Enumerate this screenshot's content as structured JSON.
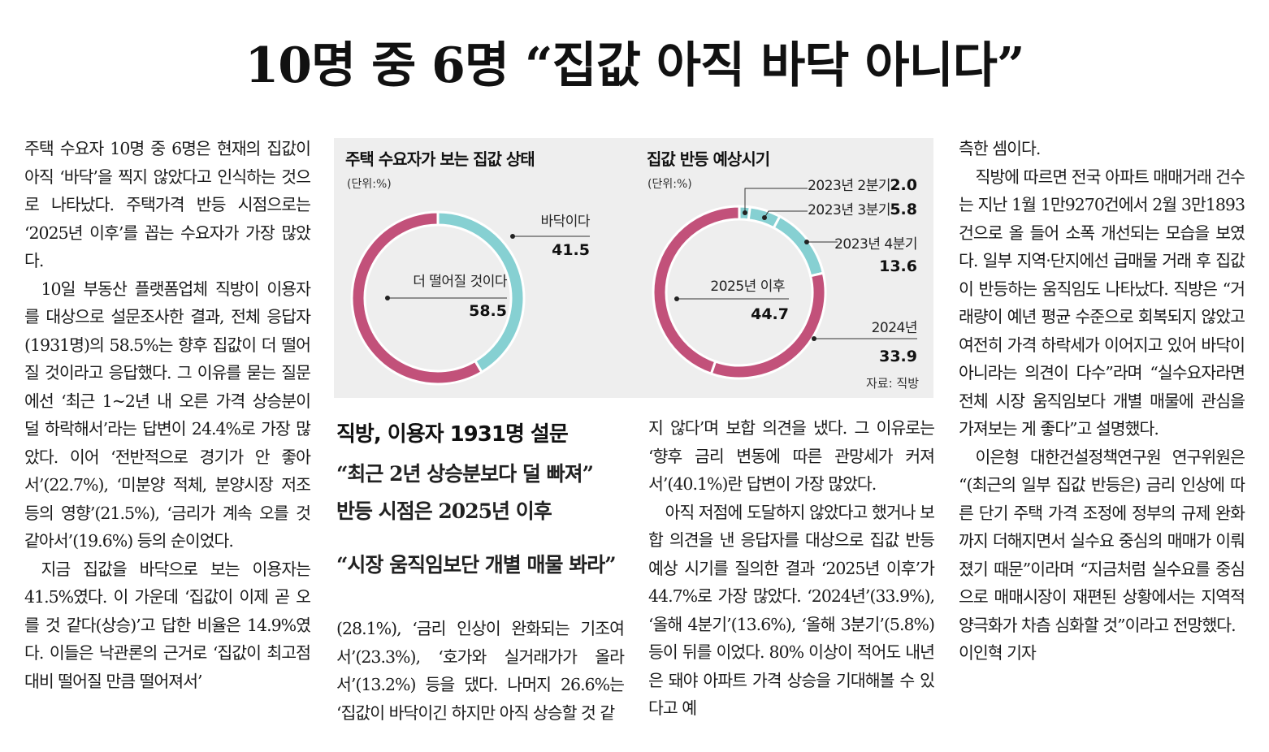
{
  "headline": "10명 중 6명 “집값 아직 바닥 아니다”",
  "column1": [
    {
      "text": "주택 수요자 10명 중 6명은 현재의 집값이 아직 ‘바닥’을 찍지 않았다고 인식하는 것으로 나타났다. 주택가격 반등 시점으로는 ‘2025년 이후’를 꼽는 수요자가 가장 많았다.",
      "indent": false
    },
    {
      "text": "10일 부동산 플랫폼업체 직방이 이용자를 대상으로 설문조사한 결과, 전체 응답자(1931명)의 58.5%는 향후 집값이 더 떨어질 것이라고 응답했다. 그 이유를 묻는 질문에선 ‘최근 1~2년 내 오른 가격 상승분이 덜 하락해서’라는 답변이 24.4%로 가장 많았다. 이어 ‘전반적으로 경기가 안 좋아서’(22.7%), ‘미분양 적체, 분양시장 저조 등의 영향’(21.5%), ‘금리가 계속 오를 것 같아서’(19.6%) 등의 순이었다.",
      "indent": true
    },
    {
      "text": "지금 집값을 바닥으로 보는 이용자는 41.5%였다. 이 가운데 ‘집값이 이제 곧 오를 것 같다(상승)’고 답한 비율은 14.9%였다. 이들은 낙관론의 근거로 ‘집값이 최고점 대비 떨어질 만큼 떨어져서’",
      "indent": true
    }
  ],
  "column2": [
    {
      "text": "(28.1%), ‘금리 인상이 완화되는 기조여서’(23.3%), ‘호가와 실거래가가 올라서’(13.2%) 등을 댔다. 나머지 26.6%는 ‘집값이 바닥이긴 하지만 아직 상승할 것 같",
      "indent": false
    }
  ],
  "column3": [
    {
      "text": "지 않다’며 보합 의견을 냈다. 그 이유로는 ‘향후 금리 변동에 따른 관망세가 커져서’(40.1%)란 답변이 가장 많았다.",
      "indent": false
    },
    {
      "text": "아직 저점에 도달하지 않았다고 했거나 보합 의견을 낸 응답자를 대상으로 집값 반등 예상 시기를 질의한 결과 ‘2025년 이후’가 44.7%로 가장 많았다. ‘2024년’(33.9%), ‘올해 4분기’(13.6%), ‘올해 3분기’(5.8%) 등이 뒤를 이었다. 80% 이상이 적어도 내년은 돼야 아파트 가격 상승을 기대해볼 수 있다고 예",
      "indent": true
    }
  ],
  "column4": [
    {
      "text": "측한 셈이다.",
      "indent": false
    },
    {
      "text": "직방에 따르면 전국 아파트 매매거래 건수는 지난 1월 1만9270건에서 2월 3만1893건으로 올 들어 소폭 개선되는 모습을 보였다. 일부 지역·단지에선 급매물 거래 후 집값이 반등하는 움직임도 나타났다. 직방은 “거래량이 예년 평균 수준으로 회복되지 않았고 여전히 가격 하락세가 이어지고 있어 바닥이 아니라는 의견이 다수”라며 “실수요자라면 전체 시장 움직임보다 개별 매물에 관심을 가져보는 게 좋다”고 설명했다.",
      "indent": true
    },
    {
      "text": "이은형 대한건설정책연구원 연구위원은 “(최근의 일부 집값 반등은) 금리 인상에 따른 단기 주택 가격 조정에 정부의 규제 완화까지 더해지면서 실수요 중심의 매매가 이뤄졌기 때문”이라며 “지금처럼 실수요를 중심으로 매매시장이 재편된 상황에서는 지역적 양극화가 차츰 심화할 것”이라고 전망했다.",
      "indent": true
    }
  ],
  "byline": "이인혁 기자",
  "subheads": {
    "title": "직방, 이용자 1931명 설문",
    "line1": "“최근 2년 상승분보다 덜 빠져”",
    "line2": "반등 시점은 2025년 이후",
    "line3": "“시장 움직임보단 개별 매물 봐라”"
  },
  "colors": {
    "magenta": "#c2517a",
    "teal": "#86d0d2",
    "panel": "#eeeeee"
  },
  "chart_data": [
    {
      "type": "pie",
      "title": "주택 수요자가 보는 집값 상태",
      "unit": "(단위:%)",
      "slices": [
        {
          "label": "바닥이다",
          "value": 41.5,
          "value_text": "41.5",
          "color": "#86d0d2"
        },
        {
          "label": "더 떨어질 것이다",
          "value": 58.5,
          "value_text": "58.5",
          "color": "#c2517a"
        }
      ]
    },
    {
      "type": "pie",
      "title": "집값 반등 예상시기",
      "unit": "(단위:%)",
      "source": "자료: 직방",
      "slices": [
        {
          "label": "2023년 2분기",
          "value": 2.0,
          "value_text": "2.0",
          "color": "#86d0d2"
        },
        {
          "label": "2023년 3분기",
          "value": 5.8,
          "value_text": "5.8",
          "color": "#86d0d2"
        },
        {
          "label": "2023년 4분기",
          "value": 13.6,
          "value_text": "13.6",
          "color": "#86d0d2"
        },
        {
          "label": "2024년",
          "value": 33.9,
          "value_text": "33.9",
          "color": "#c2517a"
        },
        {
          "label": "2025년 이후",
          "value": 44.7,
          "value_text": "44.7",
          "color": "#c2517a"
        }
      ]
    }
  ]
}
